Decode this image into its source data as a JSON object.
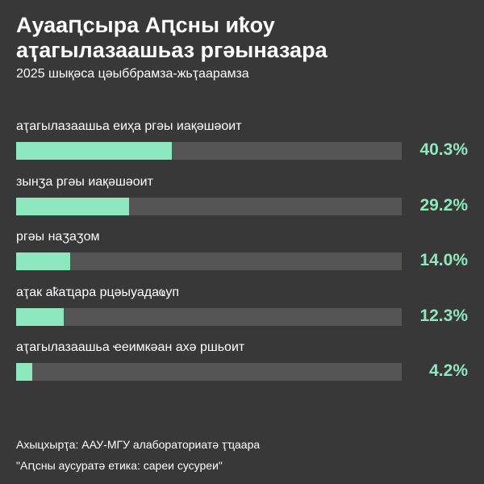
{
  "chart_data": {
    "type": "bar",
    "orientation": "horizontal",
    "title": "Ауааԥсыра Аԥсны иҟоу аҭагылазаашьаз ргәыназара",
    "subtitle": "2025 шықәса цәыббрамза-жьҭаарамза",
    "categories": [
      "аҭагылазаашьа еиҳа ргәы иақәшәоит",
      "зынӡа ргәы иақәшәоит",
      "ргәы наӡаӡом",
      "аҭак аҟаҵара рцәыуадаҩуп",
      "аҭагылазаашьа ҽеимкәан ахә ршьоит"
    ],
    "values": [
      40.3,
      29.2,
      14.0,
      12.3,
      4.2
    ],
    "value_labels": [
      "40.3%",
      "29.2%",
      "14.0%",
      "12.3%",
      "4.2%"
    ],
    "xlim": [
      0,
      100
    ],
    "color": "#8de8c0",
    "track_color": "#555555",
    "source": "Ахыцхырҭа: ААУ-МГУ алабораториатә ҭҵаара",
    "note": "\"Аԥсны аусуратә етика: сареи сусуреи\""
  }
}
